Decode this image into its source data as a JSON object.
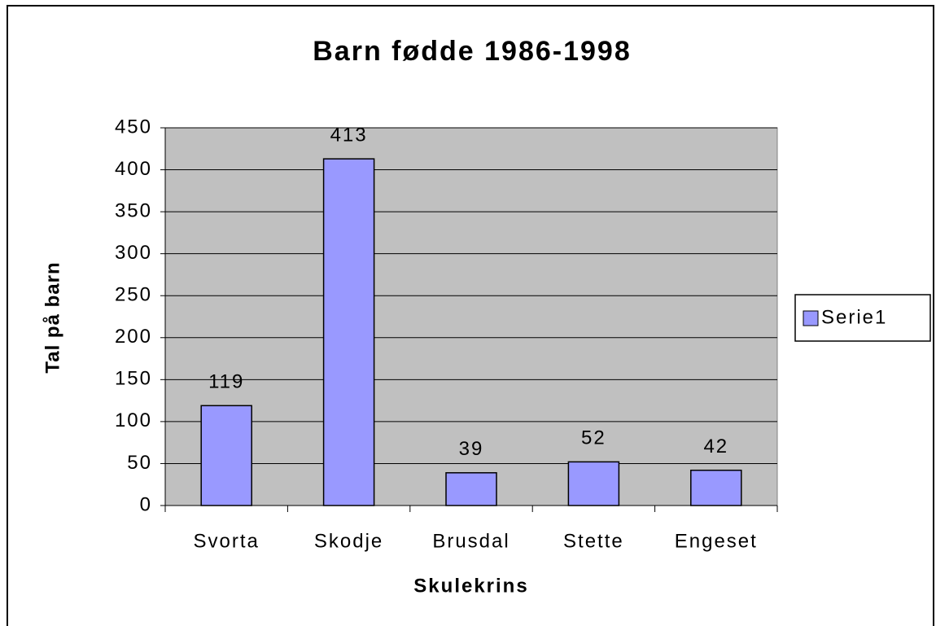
{
  "chart_data": {
    "type": "bar",
    "title": "Barn fødde 1986-1998",
    "x_label": "Skulekrins",
    "y_label": "Tal på barn",
    "categories": [
      "Svorta",
      "Skodje",
      "Brusdal",
      "Stette",
      "Engeset"
    ],
    "series": [
      {
        "name": "Serie1",
        "color": "#9999ff",
        "values": [
          119,
          413,
          39,
          52,
          42
        ]
      }
    ],
    "ylim": [
      0,
      450
    ],
    "yticks": [
      0,
      50,
      100,
      150,
      200,
      250,
      300,
      350,
      400,
      450
    ],
    "grid": true,
    "legend": "right",
    "plot_background": "#c0c0c0"
  }
}
